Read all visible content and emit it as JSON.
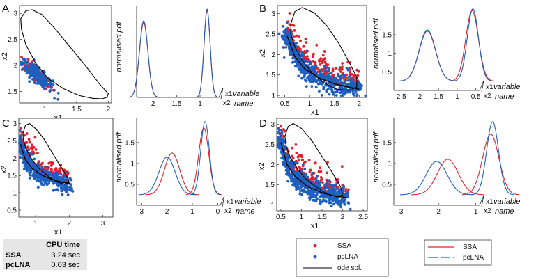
{
  "panels": {
    "A": "A",
    "B": "B",
    "C": "C",
    "D": "D"
  },
  "labels": {
    "x1": "x1",
    "x2": "x2",
    "pdf": "normalised pdf",
    "variable": "variable",
    "name": "name"
  },
  "colors": {
    "ssa": "#e0202a",
    "pclna": "#1f5fbf",
    "ode": "#000000"
  },
  "legend_scatter": {
    "ssa": "SSA",
    "pclna": "pcLNA",
    "ode": "ode sol."
  },
  "legend_pdf": {
    "ssa": "SSA",
    "pclna": "pcLNA"
  },
  "cpu_table": {
    "header": "CPU time",
    "rows": [
      {
        "method": "SSA",
        "time": "3.24 sec"
      },
      {
        "method": "pcLNA",
        "time": "0.03 sec"
      }
    ]
  },
  "chart_data": [
    {
      "panel": "A",
      "type": "scatter",
      "xlabel": "x1",
      "ylabel": "x2",
      "xlim": [
        0.6,
        2.05
      ],
      "ylim": [
        1.28,
        3.15
      ],
      "xticks": [
        1,
        1.5,
        2
      ],
      "yticks": [
        1.5,
        2,
        2.5,
        3
      ],
      "ode_cycle": {
        "x": [
          0.62,
          0.7,
          0.8,
          0.95,
          1.15,
          1.4,
          1.65,
          1.85,
          2.0,
          1.98,
          1.9,
          1.75,
          1.55,
          1.3,
          1.05,
          0.85,
          0.7,
          0.63,
          0.62
        ],
        "y": [
          2.9,
          3.05,
          3.07,
          2.98,
          2.72,
          2.35,
          1.98,
          1.66,
          1.46,
          1.39,
          1.36,
          1.37,
          1.42,
          1.55,
          1.75,
          2.05,
          2.4,
          2.7,
          2.9
        ]
      },
      "cloud": {
        "xc": 0.88,
        "yc": 1.82,
        "sx": 0.12,
        "sy": 0.14,
        "rho": -0.85,
        "n_ssa": 120,
        "n_pclna": 260
      }
    },
    {
      "panel": "A",
      "type": "line",
      "ylabel": "normalised pdf",
      "x1_ticks": [
        1.5,
        2
      ],
      "x2_ticks": [
        1
      ],
      "axis_end_labels": [
        "x1",
        "x2"
      ],
      "series": [
        {
          "name": "SSA",
          "peaks": [
            {
              "mu": 2.2,
              "sd": 0.09,
              "h": 4.75
            },
            {
              "mu": 0.85,
              "sd": 0.065,
              "h": 5.5
            }
          ]
        },
        {
          "name": "pcLNA",
          "peaks": [
            {
              "mu": 2.2,
              "sd": 0.09,
              "h": 4.85
            },
            {
              "mu": 0.85,
              "sd": 0.065,
              "h": 5.6
            }
          ]
        }
      ]
    },
    {
      "panel": "B",
      "type": "scatter",
      "xlabel": "x1",
      "ylabel": "x2",
      "xlim": [
        0.35,
        2.15
      ],
      "ylim": [
        0.95,
        3.2
      ],
      "xticks": [
        0.5,
        1,
        1.5,
        2
      ],
      "yticks": [
        1,
        1.5,
        2,
        2.5,
        3
      ],
      "ode_cycle": {
        "x": [
          0.62,
          0.7,
          0.85,
          1.1,
          1.35,
          1.6,
          1.8,
          1.95,
          1.95,
          1.8,
          1.55,
          1.3,
          1.05,
          0.85,
          0.7,
          0.62,
          0.62
        ],
        "y": [
          2.75,
          3.05,
          3.15,
          3.02,
          2.7,
          2.25,
          1.8,
          1.45,
          1.2,
          1.12,
          1.15,
          1.3,
          1.55,
          1.85,
          2.2,
          2.5,
          2.75
        ]
      },
      "band": {
        "x": [
          0.55,
          0.7,
          0.9,
          1.2,
          1.5,
          1.8,
          2.0
        ],
        "y": [
          2.45,
          1.95,
          1.65,
          1.42,
          1.28,
          1.2,
          1.15
        ]
      },
      "n_ssa": 220,
      "n_pclna": 600
    },
    {
      "panel": "B",
      "type": "line",
      "ylabel": "normalised pdf",
      "yticks": [
        0.5,
        1,
        1.5
      ],
      "x_ticks": [
        2.5,
        2,
        1.5,
        1,
        0.5
      ],
      "axis_end_labels": [
        "x1",
        "x2"
      ],
      "series": [
        {
          "name": "SSA",
          "peaks": [
            {
              "mu": 1.8,
              "sd": 0.22,
              "h": 1.35
            },
            {
              "mu": 0.6,
              "sd": 0.17,
              "h": 1.9
            }
          ],
          "base": 0.25
        },
        {
          "name": "pcLNA",
          "peaks": [
            {
              "mu": 1.8,
              "sd": 0.22,
              "h": 1.38
            },
            {
              "mu": 0.58,
              "sd": 0.15,
              "h": 1.95
            }
          ],
          "base": 0.25
        }
      ]
    },
    {
      "panel": "C",
      "type": "scatter",
      "xlabel": "x1",
      "ylabel": "x2",
      "xlim": [
        0.5,
        3.3
      ],
      "ylim": [
        0.3,
        3.15
      ],
      "xticks": [
        1,
        2,
        3
      ],
      "yticks": [
        0.5,
        1,
        1.5,
        2,
        2.5,
        3
      ],
      "ode_cycle": {
        "x": [
          0.62,
          0.7,
          0.82,
          1.0,
          1.25,
          1.5,
          1.75,
          1.95,
          2.0,
          1.85,
          1.6,
          1.35,
          1.1,
          0.9,
          0.72,
          0.64,
          0.62
        ],
        "y": [
          2.7,
          2.95,
          3.0,
          2.85,
          2.55,
          2.15,
          1.75,
          1.45,
          1.28,
          1.25,
          1.33,
          1.5,
          1.7,
          1.95,
          2.25,
          2.5,
          2.7
        ]
      },
      "band": {
        "x": [
          0.55,
          0.7,
          0.9,
          1.2,
          1.5,
          1.8,
          2.0
        ],
        "y": [
          2.4,
          1.95,
          1.7,
          1.5,
          1.38,
          1.3,
          1.28
        ]
      },
      "n_ssa": 150,
      "n_pclna": 520
    },
    {
      "panel": "C",
      "type": "line",
      "ylabel": "normalised pdf",
      "yticks": [
        0.5,
        1,
        1.5
      ],
      "x_ticks": [
        3,
        2,
        1,
        0
      ],
      "axis_end_labels": [
        "x1",
        "x2"
      ],
      "series": [
        {
          "name": "SSA",
          "peaks": [
            {
              "mu": 1.8,
              "sd": 0.3,
              "h": 1.0
            },
            {
              "mu": 0.55,
              "sd": 0.2,
              "h": 1.6
            }
          ],
          "base": 0.25
        },
        {
          "name": "pcLNA",
          "peaks": [
            {
              "mu": 2.0,
              "sd": 0.32,
              "h": 0.9
            },
            {
              "mu": 0.5,
              "sd": 0.17,
              "h": 1.75
            }
          ],
          "base": 0.25
        }
      ]
    },
    {
      "panel": "D",
      "type": "scatter",
      "xlabel": "x1",
      "ylabel": "x2",
      "xlim": [
        0.4,
        2.6
      ],
      "ylim": [
        0.85,
        3.15
      ],
      "xticks": [
        0.5,
        1,
        1.5,
        2,
        2.5
      ],
      "yticks": [
        1,
        1.5,
        2,
        2.5,
        3
      ],
      "ode_cycle": {
        "x": [
          0.6,
          0.68,
          0.8,
          1.0,
          1.25,
          1.5,
          1.75,
          1.95,
          2.0,
          1.85,
          1.6,
          1.35,
          1.1,
          0.9,
          0.72,
          0.63,
          0.6
        ],
        "y": [
          2.7,
          2.95,
          3.02,
          2.9,
          2.6,
          2.2,
          1.8,
          1.45,
          1.25,
          1.2,
          1.28,
          1.45,
          1.65,
          1.9,
          2.2,
          2.45,
          2.7
        ]
      },
      "band": {
        "x": [
          0.5,
          0.65,
          0.85,
          1.15,
          1.5,
          1.8,
          2.1
        ],
        "y": [
          2.55,
          2.0,
          1.7,
          1.45,
          1.3,
          1.22,
          1.18
        ]
      },
      "n_ssa": 180,
      "n_pclna": 650
    },
    {
      "panel": "D",
      "type": "line",
      "ylabel": "normalised pdf",
      "yticks": [
        0.5,
        1,
        1.5
      ],
      "x_ticks": [
        3,
        2,
        1
      ],
      "axis_end_labels": [
        "x1",
        "x2"
      ],
      "series": [
        {
          "name": "SSA",
          "peaks": [
            {
              "mu": 1.75,
              "sd": 0.28,
              "h": 0.85
            },
            {
              "mu": 0.6,
              "sd": 0.22,
              "h": 1.45
            }
          ],
          "base": 0.25
        },
        {
          "name": "pcLNA",
          "peaks": [
            {
              "mu": 2.05,
              "sd": 0.28,
              "h": 0.8
            },
            {
              "mu": 0.55,
              "sd": 0.16,
              "h": 1.75
            }
          ],
          "base": 0.25
        }
      ]
    }
  ]
}
